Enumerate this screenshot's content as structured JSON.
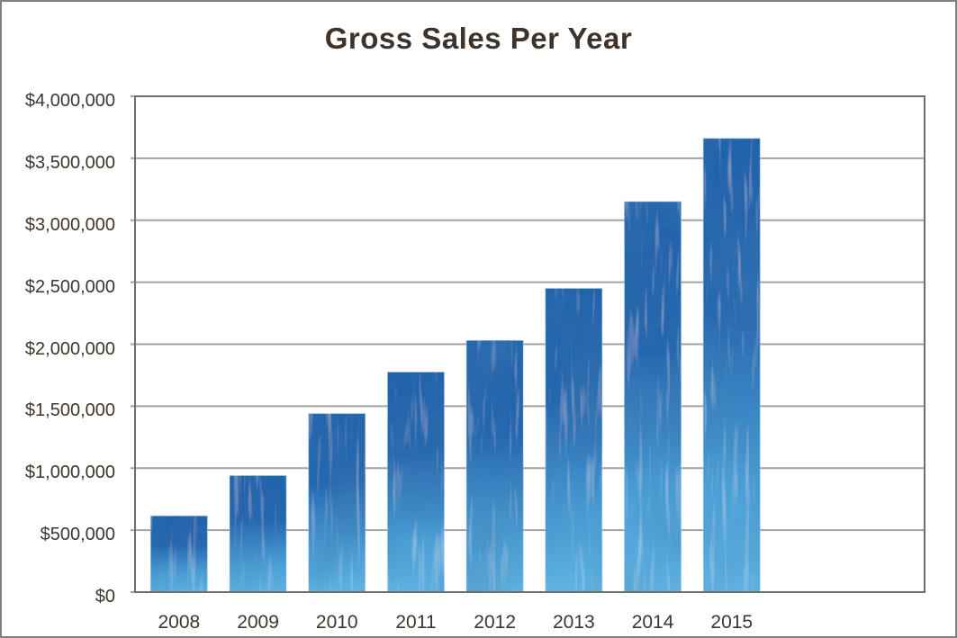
{
  "chart_data": {
    "type": "bar",
    "title": "Gross Sales Per Year",
    "categories": [
      "2008",
      "2009",
      "2010",
      "2011",
      "2012",
      "2013",
      "2014",
      "2015"
    ],
    "values": [
      615000,
      940000,
      1440000,
      1775000,
      2030000,
      2450000,
      3150000,
      3660000
    ],
    "xlabel": "",
    "ylabel": "",
    "ylim": [
      0,
      4000000
    ],
    "y_tick_step": 500000,
    "y_tick_labels": [
      "$0",
      "$500,000",
      "$1,000,000",
      "$1,500,000",
      "$2,000,000",
      "$2,500,000",
      "$3,000,000",
      "$3,500,000",
      "$4,000,000"
    ],
    "grid": true,
    "legend": "none",
    "value_format": "currency_usd",
    "x_slots_total": 10,
    "bar_texture": "watercolor",
    "bar_gradient_stops": [
      {
        "offset": 0.0,
        "color": "#2464AB"
      },
      {
        "offset": 0.38,
        "color": "#2767AE"
      },
      {
        "offset": 0.58,
        "color": "#3A85C4"
      },
      {
        "offset": 0.78,
        "color": "#4DA0D6"
      },
      {
        "offset": 0.92,
        "color": "#58ACDE"
      },
      {
        "offset": 1.0,
        "color": "#62B3E2"
      }
    ]
  },
  "colors": {
    "background": "#FFFFFF",
    "frame_border": "#808080",
    "title_text": "#3E332B",
    "axis_text": "#3F362E",
    "gridline": "#A3A3A3",
    "plot_border": "#756E66",
    "bar_dark": "#2464AB",
    "bar_mid": "#3A85C4",
    "bar_light": "#5FB1E1"
  }
}
